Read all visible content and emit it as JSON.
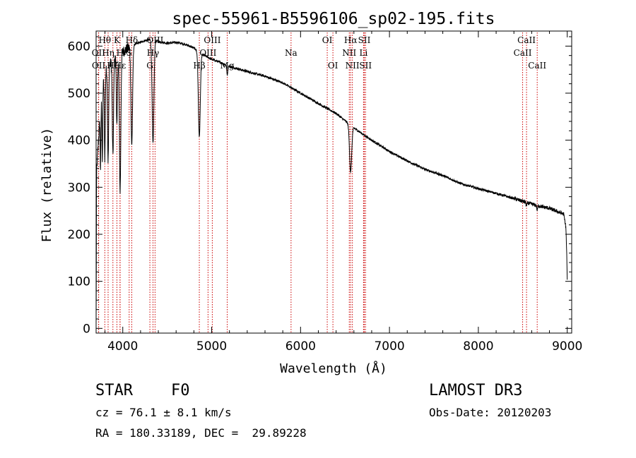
{
  "chart_data": {
    "type": "line",
    "title": "spec-55961-B5596106_sp02-195.fits",
    "xlabel": "Wavelength (Å)",
    "ylabel": "Flux (relative)",
    "xlim": [
      3700,
      9050
    ],
    "ylim": [
      -10,
      632
    ],
    "xticks": [
      4000,
      5000,
      6000,
      7000,
      8000,
      9000
    ],
    "yticks": [
      0,
      100,
      200,
      300,
      400,
      500,
      600
    ],
    "xtick_labels": [
      "4000",
      "5000",
      "6000",
      "7000",
      "8000",
      "9000"
    ],
    "ytick_labels": [
      "0",
      "100",
      "200",
      "300",
      "400",
      "500",
      "600"
    ],
    "line_color": "#000000",
    "marker_color": "#cc0000",
    "continuum": [
      [
        3700,
        5
      ],
      [
        3705,
        330
      ],
      [
        3720,
        380
      ],
      [
        3750,
        470
      ],
      [
        3780,
        520
      ],
      [
        3800,
        545
      ],
      [
        3850,
        560
      ],
      [
        3900,
        572
      ],
      [
        3950,
        580
      ],
      [
        4000,
        588
      ],
      [
        4050,
        594
      ],
      [
        4100,
        600
      ],
      [
        4150,
        605
      ],
      [
        4200,
        608
      ],
      [
        4250,
        612
      ],
      [
        4300,
        614
      ],
      [
        4400,
        610
      ],
      [
        4500,
        606
      ],
      [
        4600,
        608
      ],
      [
        4700,
        604
      ],
      [
        4800,
        596
      ],
      [
        4900,
        582
      ],
      [
        5000,
        572
      ],
      [
        5100,
        565
      ],
      [
        5200,
        557
      ],
      [
        5400,
        546
      ],
      [
        5600,
        536
      ],
      [
        5800,
        522
      ],
      [
        6000,
        500
      ],
      [
        6200,
        478
      ],
      [
        6400,
        457
      ],
      [
        6600,
        426
      ],
      [
        6800,
        400
      ],
      [
        7000,
        376
      ],
      [
        7200,
        356
      ],
      [
        7400,
        338
      ],
      [
        7600,
        325
      ],
      [
        7800,
        308
      ],
      [
        8000,
        297
      ],
      [
        8200,
        287
      ],
      [
        8400,
        276
      ],
      [
        8600,
        264
      ],
      [
        8800,
        255
      ],
      [
        8960,
        243
      ],
      [
        8985,
        215
      ],
      [
        8995,
        150
      ],
      [
        9000,
        100
      ]
    ],
    "absorption": [
      {
        "center": 3750,
        "depth": 130,
        "width": 4
      },
      {
        "center": 3770,
        "depth": 150,
        "width": 4
      },
      {
        "center": 3798,
        "depth": 180,
        "width": 5
      },
      {
        "center": 3835,
        "depth": 200,
        "width": 6
      },
      {
        "center": 3889,
        "depth": 200,
        "width": 7
      },
      {
        "center": 3934,
        "depth": 150,
        "width": 6
      },
      {
        "center": 3970,
        "depth": 290,
        "width": 8
      },
      {
        "center": 4101,
        "depth": 210,
        "width": 9
      },
      {
        "center": 4340,
        "depth": 220,
        "width": 10
      },
      {
        "center": 4861,
        "depth": 180,
        "width": 11
      },
      {
        "center": 5175,
        "depth": 20,
        "width": 6
      },
      {
        "center": 6563,
        "depth": 100,
        "width": 12
      },
      {
        "center": 8542,
        "depth": 8,
        "width": 5
      },
      {
        "center": 8662,
        "depth": 10,
        "width": 5
      }
    ],
    "lines": [
      {
        "label": "Hθ",
        "wave": 3798,
        "row": 0
      },
      {
        "label": "OII",
        "wave": 3727,
        "row": 1
      },
      {
        "label": "OII",
        "wave": 3729,
        "row": 2
      },
      {
        "label": "Hη",
        "wave": 3835,
        "row": 1
      },
      {
        "label": "Hζ",
        "wave": 3889,
        "row": 2
      },
      {
        "label": "K",
        "wave": 3934,
        "row": 0
      },
      {
        "label": "H",
        "wave": 3969,
        "row": 1
      },
      {
        "label": "Hε",
        "wave": 3970,
        "row": 2
      },
      {
        "label": "Hδ",
        "wave": 4101,
        "row": 0
      },
      {
        "label": "S",
        "wave": 4072,
        "row": 1
      },
      {
        "label": "G",
        "wave": 4305,
        "row": 2
      },
      {
        "label": "OIII",
        "wave": 4363,
        "row": 0
      },
      {
        "label": "Hγ",
        "wave": 4340,
        "row": 1
      },
      {
        "label": "OIII",
        "wave": 5007,
        "row": 0
      },
      {
        "label": "OIII",
        "wave": 4959,
        "row": 1
      },
      {
        "label": "Hβ",
        "wave": 4861,
        "row": 2
      },
      {
        "label": "Mg",
        "wave": 5175,
        "row": 2
      },
      {
        "label": "Na",
        "wave": 5893,
        "row": 1
      },
      {
        "label": "OI",
        "wave": 6300,
        "row": 0
      },
      {
        "label": "OI",
        "wave": 6364,
        "row": 2
      },
      {
        "label": "Hα",
        "wave": 6563,
        "row": 0
      },
      {
        "label": "NII",
        "wave": 6548,
        "row": 1
      },
      {
        "label": "NII",
        "wave": 6583,
        "row": 2
      },
      {
        "label": "SII",
        "wave": 6717,
        "row": 0
      },
      {
        "label": "Li",
        "wave": 6708,
        "row": 1
      },
      {
        "label": "SII",
        "wave": 6731,
        "row": 2
      },
      {
        "label": "CaII",
        "wave": 8542,
        "row": 0
      },
      {
        "label": "CaII",
        "wave": 8498,
        "row": 1
      },
      {
        "label": "CaII",
        "wave": 8662,
        "row": 2
      }
    ]
  },
  "info": {
    "object_class": "STAR",
    "subclass": "F0",
    "survey": "LAMOST DR3",
    "cz": "cz = 76.1 ± 8.1 km/s",
    "obs_date": "Obs-Date: 20120203",
    "coords": "RA = 180.33189, DEC =  29.89228"
  }
}
